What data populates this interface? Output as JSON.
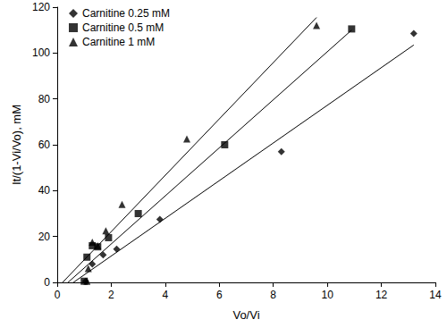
{
  "chart_data": {
    "type": "scatter",
    "x_label": "Vo/Vi",
    "y_label": "It/(1-Vi/Vo), mM",
    "xlim": [
      0,
      14
    ],
    "xticks": [
      0,
      2,
      4,
      6,
      8,
      10,
      12,
      14
    ],
    "ylim": [
      0,
      120
    ],
    "yticks": [
      0,
      20,
      40,
      60,
      80,
      100,
      120
    ],
    "grid": false,
    "legend": "upper left",
    "series": [
      {
        "name": "Carnitine 0.25 mM",
        "color": "#000000",
        "marker": "diamond",
        "x": [
          1.05,
          1.3,
          1.7,
          2.2,
          3.8,
          8.3,
          13.2
        ],
        "values": [
          0.5,
          8,
          12,
          14.5,
          27.5,
          57,
          108.5
        ],
        "fit_line": {
          "x": [
            0.6,
            13.2
          ],
          "values": [
            0,
            103.5
          ]
        }
      },
      {
        "name": "Carnitine 0.5 mM",
        "color": "#000000",
        "marker": "square",
        "x": [
          1.0,
          1.1,
          1.3,
          1.5,
          1.9,
          3.0,
          6.2,
          10.9
        ],
        "values": [
          0.5,
          11,
          16,
          15.5,
          19.5,
          30,
          60,
          110.5
        ],
        "fit_line": {
          "x": [
            0.4,
            10.9
          ],
          "values": [
            0,
            110
          ]
        }
      },
      {
        "name": "Carnitine 1 mM",
        "color": "#000000",
        "marker": "triangle",
        "x": [
          1.1,
          1.15,
          1.3,
          1.5,
          1.8,
          2.4,
          4.8,
          9.6
        ],
        "values": [
          0.5,
          6,
          17.5,
          16,
          22.5,
          34,
          62.5,
          112
        ],
        "fit_line": {
          "x": [
            0.2,
            9.6
          ],
          "values": [
            0,
            115.5
          ]
        }
      }
    ]
  }
}
